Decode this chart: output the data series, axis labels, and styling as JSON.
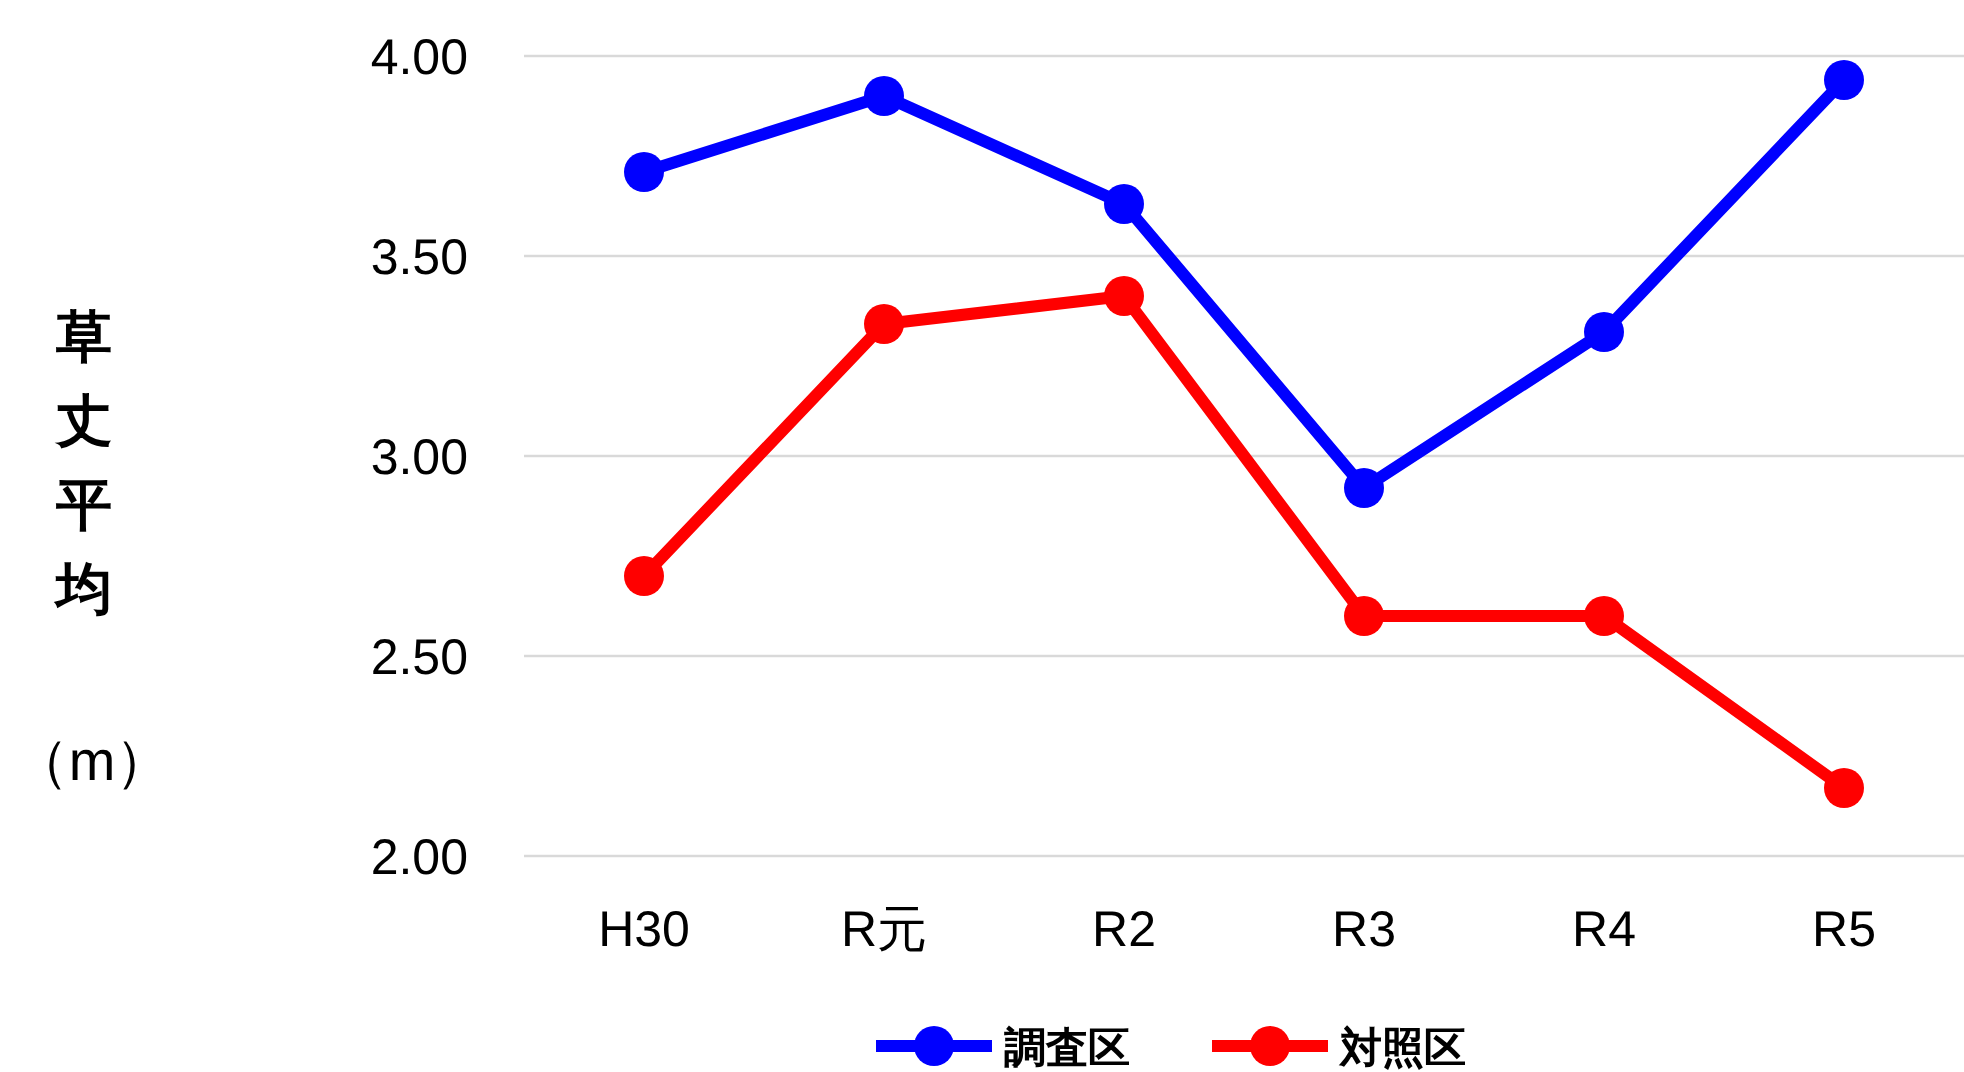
{
  "chart_data": {
    "type": "line",
    "ylabel": "草丈平均（m）",
    "categories": [
      "H30",
      "R元",
      "R2",
      "R3",
      "R4",
      "R5"
    ],
    "series": [
      {
        "name": "調査区",
        "color": "#0000ff",
        "values": [
          3.71,
          3.9,
          3.63,
          2.92,
          3.31,
          3.94
        ]
      },
      {
        "name": "対照区",
        "color": "#ff0000",
        "values": [
          2.7,
          3.33,
          3.4,
          2.6,
          2.6,
          2.17
        ]
      }
    ],
    "ylim": [
      2,
      4
    ],
    "yticks": [
      {
        "value": 2,
        "label": "2.00"
      },
      {
        "value": 2.5,
        "label": "2.50"
      },
      {
        "value": 3,
        "label": "3.00"
      },
      {
        "value": 3.5,
        "label": "3.50"
      },
      {
        "value": 4,
        "label": "4.00"
      }
    ],
    "grid": "y",
    "legend": "bottom",
    "marker": "circle",
    "line_style": "solid"
  }
}
